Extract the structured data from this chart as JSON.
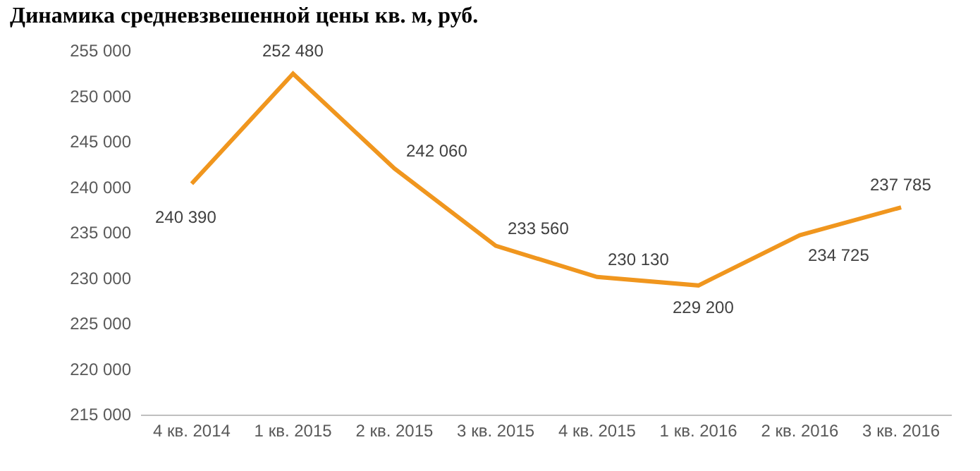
{
  "chart_data": {
    "type": "line",
    "title": "Динамика средневзвешенной цены кв. м, руб.",
    "categories": [
      "4 кв. 2014",
      "1 кв. 2015",
      "2 кв. 2015",
      "3 кв. 2015",
      "4 кв. 2015",
      "1 кв. 2016",
      "2 кв. 2016",
      "3 кв. 2016"
    ],
    "series": [
      {
        "color": "#f0961e",
        "values": [
          240390,
          252480,
          242060,
          233560,
          230130,
          229200,
          234725,
          237785
        ],
        "value_labels": [
          "240 390",
          "252 480",
          "242 060",
          "233 560",
          "230 130",
          "229 200",
          "234 725",
          "237 785"
        ]
      }
    ],
    "ylim": [
      215000,
      255000
    ],
    "yticks": [
      {
        "value": 215000,
        "label": "215 000"
      },
      {
        "value": 220000,
        "label": "220 000"
      },
      {
        "value": 225000,
        "label": "225 000"
      },
      {
        "value": 230000,
        "label": "230 000"
      },
      {
        "value": 235000,
        "label": "235 000"
      },
      {
        "value": 240000,
        "label": "240 000"
      },
      {
        "value": 245000,
        "label": "245 000"
      },
      {
        "value": 250000,
        "label": "250 000"
      },
      {
        "value": 255000,
        "label": "255 000"
      }
    ],
    "marker": "none",
    "line_style": "solid"
  }
}
